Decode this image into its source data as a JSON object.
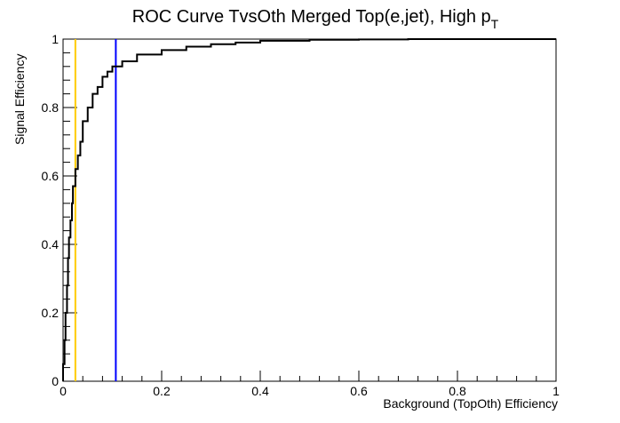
{
  "chart_data": {
    "type": "line",
    "title_main": "ROC Curve TvsOth Merged Top(e,jet), High p",
    "title_sub": "T",
    "xlabel": "Background (TopOth) Efficiency",
    "ylabel": "Signal Efficiency",
    "xlim": [
      0,
      1
    ],
    "ylim": [
      0,
      1
    ],
    "x_ticks": [
      {
        "value": 0,
        "label": "0"
      },
      {
        "value": 0.2,
        "label": "0.2"
      },
      {
        "value": 0.4,
        "label": "0.4"
      },
      {
        "value": 0.6,
        "label": "0.6"
      },
      {
        "value": 0.8,
        "label": "0.8"
      },
      {
        "value": 1,
        "label": "1"
      }
    ],
    "y_ticks": [
      {
        "value": 0,
        "label": "0"
      },
      {
        "value": 0.2,
        "label": "0.2"
      },
      {
        "value": 0.4,
        "label": "0.4"
      },
      {
        "value": 0.6,
        "label": "0.6"
      },
      {
        "value": 0.8,
        "label": "0.8"
      },
      {
        "value": 1,
        "label": "1"
      }
    ],
    "series": [
      {
        "color": "#000000",
        "x": [
          0,
          0.003,
          0.005,
          0.008,
          0.01,
          0.012,
          0.015,
          0.018,
          0.02,
          0.025,
          0.03,
          0.035,
          0.04,
          0.05,
          0.06,
          0.07,
          0.08,
          0.09,
          0.1,
          0.12,
          0.15,
          0.2,
          0.25,
          0.3,
          0.35,
          0.4,
          0.5,
          0.6,
          0.7,
          0.8,
          0.9,
          1.0
        ],
        "y": [
          0.0,
          0.05,
          0.12,
          0.2,
          0.28,
          0.36,
          0.42,
          0.47,
          0.52,
          0.57,
          0.62,
          0.66,
          0.7,
          0.76,
          0.8,
          0.84,
          0.86,
          0.89,
          0.905,
          0.92,
          0.935,
          0.955,
          0.968,
          0.978,
          0.985,
          0.99,
          0.995,
          0.998,
          0.999,
          1.0,
          1.0,
          1.0
        ]
      }
    ],
    "vlines": [
      {
        "x": 0.025,
        "color": "#ffcc00"
      },
      {
        "x": 0.107,
        "color": "#0000ff"
      }
    ],
    "grid": false
  }
}
